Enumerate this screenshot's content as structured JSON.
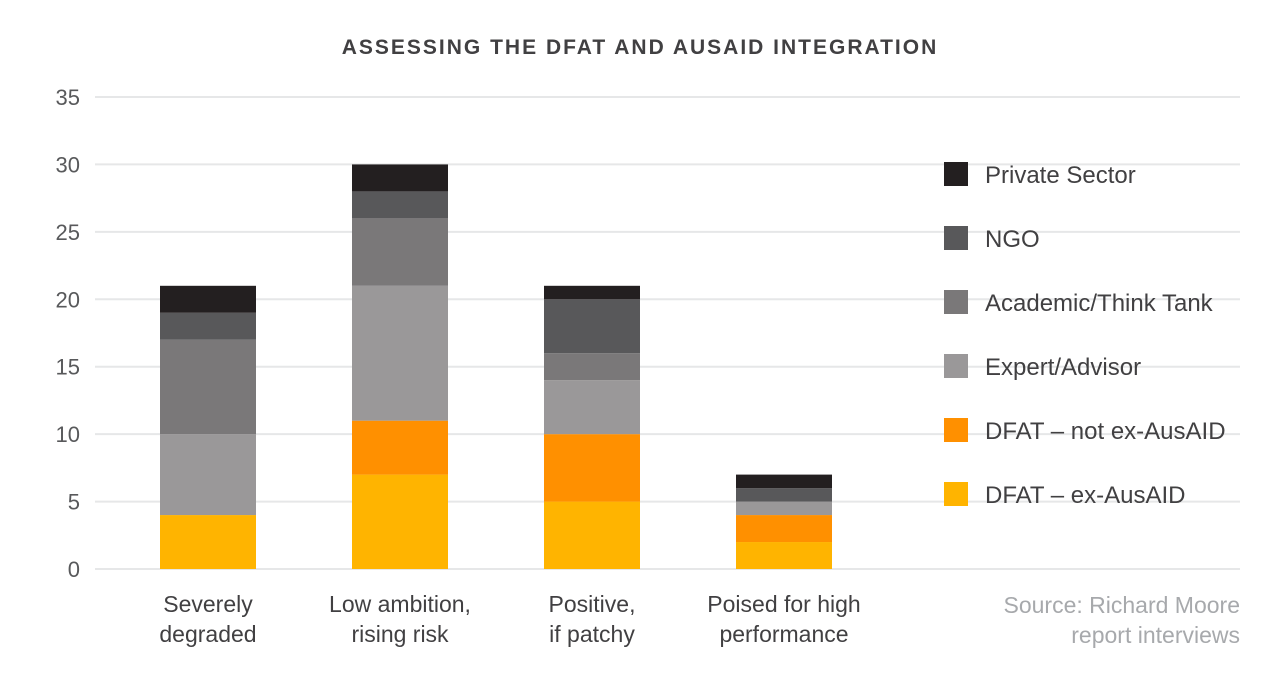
{
  "chart_data": {
    "type": "bar",
    "stacked": true,
    "title": "ASSESSING THE DFAT AND AUSAID INTEGRATION",
    "categories": [
      [
        "Severely",
        "degraded"
      ],
      [
        "Low ambition,",
        "rising risk"
      ],
      [
        "Positive,",
        "if patchy"
      ],
      [
        "Poised for high",
        "performance"
      ]
    ],
    "series": [
      {
        "name": "DFAT – ex-AusAID",
        "color": "#ffb400",
        "values": [
          4,
          7,
          5,
          2
        ]
      },
      {
        "name": "DFAT – not ex-AusAID",
        "color": "#ff9000",
        "values": [
          0,
          4,
          5,
          2
        ]
      },
      {
        "name": "Expert/Advisor",
        "color": "#9a9899",
        "values": [
          6,
          10,
          4,
          1
        ]
      },
      {
        "name": "Academic/Think Tank",
        "color": "#7a7879",
        "values": [
          7,
          5,
          2,
          0
        ]
      },
      {
        "name": "NGO",
        "color": "#58585a",
        "values": [
          2,
          2,
          4,
          1
        ]
      },
      {
        "name": "Private Sector",
        "color": "#231f20",
        "values": [
          2,
          2,
          1,
          1
        ]
      }
    ],
    "ylim": [
      0,
      35
    ],
    "yticks": [
      0,
      5,
      10,
      15,
      20,
      25,
      30,
      35
    ],
    "grid": true,
    "legend": "right",
    "xlabel": "",
    "ylabel": ""
  },
  "source": [
    "Source: Richard Moore",
    "report interviews"
  ]
}
